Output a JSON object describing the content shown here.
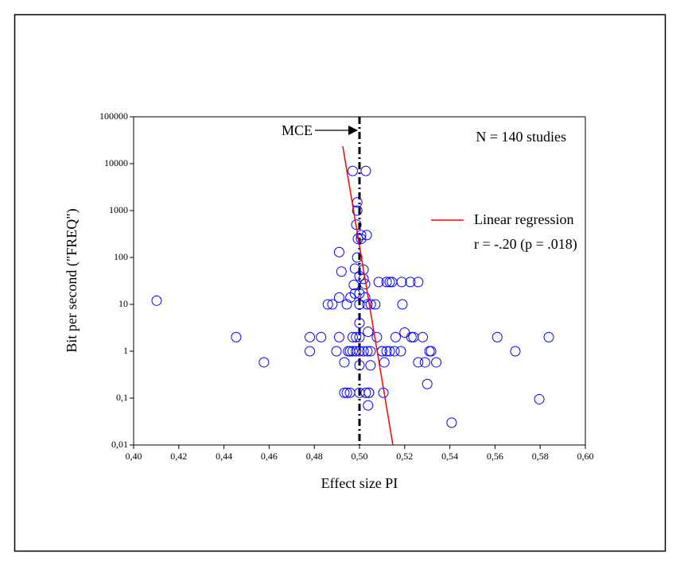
{
  "chart_data": {
    "type": "scatter",
    "x_label": "Effect size PI",
    "y_label": "Bit per second (\"FREQ\")",
    "annotation": "N = 140 studies",
    "log_y": true,
    "xlim": [
      0.4,
      0.6
    ],
    "ylim": [
      0.01,
      100000
    ],
    "xticks": [
      {
        "value": 0.4,
        "label": "0,40"
      },
      {
        "value": 0.42,
        "label": "0,42"
      },
      {
        "value": 0.44,
        "label": "0,44"
      },
      {
        "value": 0.46,
        "label": "0,46"
      },
      {
        "value": 0.48,
        "label": "0,48"
      },
      {
        "value": 0.5,
        "label": "0,50"
      },
      {
        "value": 0.52,
        "label": "0,52"
      },
      {
        "value": 0.54,
        "label": "0,54"
      },
      {
        "value": 0.56,
        "label": "0,56"
      },
      {
        "value": 0.58,
        "label": "0,58"
      },
      {
        "value": 0.6,
        "label": "0,60"
      }
    ],
    "yticks": [
      {
        "value": 0.01,
        "label": "0,01"
      },
      {
        "value": 0.1,
        "label": "0,1"
      },
      1,
      10,
      100,
      1000,
      10000,
      100000
    ],
    "series": [
      {
        "color": "#0000ff",
        "x": [
          0.4102,
          0.4454,
          0.4577,
          0.478,
          0.478,
          0.483,
          0.486,
          0.488,
          0.4898,
          0.491,
          0.491,
          0.492,
          0.491,
          0.4933,
          0.4933,
          0.4944,
          0.4958,
          0.4975,
          0.4944,
          0.495,
          0.4958,
          0.496,
          0.497,
          0.497,
          0.497,
          0.498,
          0.498,
          0.4985,
          0.4985,
          0.499,
          0.499,
          0.4986,
          0.4993,
          0.499,
          0.5,
          0.5,
          0.5,
          0.5,
          0.5,
          0.5,
          0.5,
          0.5,
          0.5007,
          0.5007,
          0.5018,
          0.5032,
          0.5018,
          0.5025,
          0.5018,
          0.5028,
          0.5025,
          0.5035,
          0.5028,
          0.5038,
          0.5035,
          0.5049,
          0.5049,
          0.5042,
          0.5042,
          0.5038,
          0.505,
          0.507,
          0.5077,
          0.5085,
          0.51,
          0.512,
          0.5134,
          0.5144,
          0.51,
          0.512,
          0.5134,
          0.5155,
          0.5183,
          0.511,
          0.5106,
          0.516,
          0.5187,
          0.519,
          0.52,
          0.5225,
          0.523,
          0.5239,
          0.526,
          0.526,
          0.528,
          0.529,
          0.531,
          0.5317,
          0.53,
          0.534,
          0.5408,
          0.561,
          0.569,
          0.5796,
          0.5838
        ],
        "values": [
          12,
          2,
          0.58,
          2,
          1,
          2,
          10,
          10,
          1,
          14,
          130,
          50,
          2,
          0.58,
          0.13,
          10,
          1,
          26,
          0.13,
          1,
          0.13,
          14,
          2,
          7000,
          1,
          58,
          17,
          2,
          1,
          1500,
          1000,
          500,
          250,
          100,
          40,
          17,
          10,
          4,
          2,
          1,
          0.5,
          0.13,
          250,
          300,
          55,
          300,
          35,
          27,
          1,
          7000,
          14,
          10,
          0.13,
          2.6,
          1,
          1,
          0.5,
          0.13,
          0.13,
          0.07,
          10,
          10,
          2,
          30,
          1,
          30,
          30,
          30,
          1,
          1,
          1,
          1,
          1,
          0.58,
          0.13,
          2,
          30,
          10,
          2.5,
          30,
          2,
          2,
          30,
          0.58,
          2,
          0.58,
          1,
          1,
          0.2,
          0.58,
          0.03,
          2,
          1,
          0.095,
          2
        ]
      }
    ],
    "regression": {
      "name": "Linear regression",
      "note": "r = -.20 (p = .018)",
      "color": "#ff0000",
      "x": [
        0.4926,
        0.5148
      ],
      "values": [
        23600,
        0.01
      ]
    },
    "mce_line": {
      "label": "MCE",
      "x": 0.5,
      "color": "#000000"
    }
  }
}
